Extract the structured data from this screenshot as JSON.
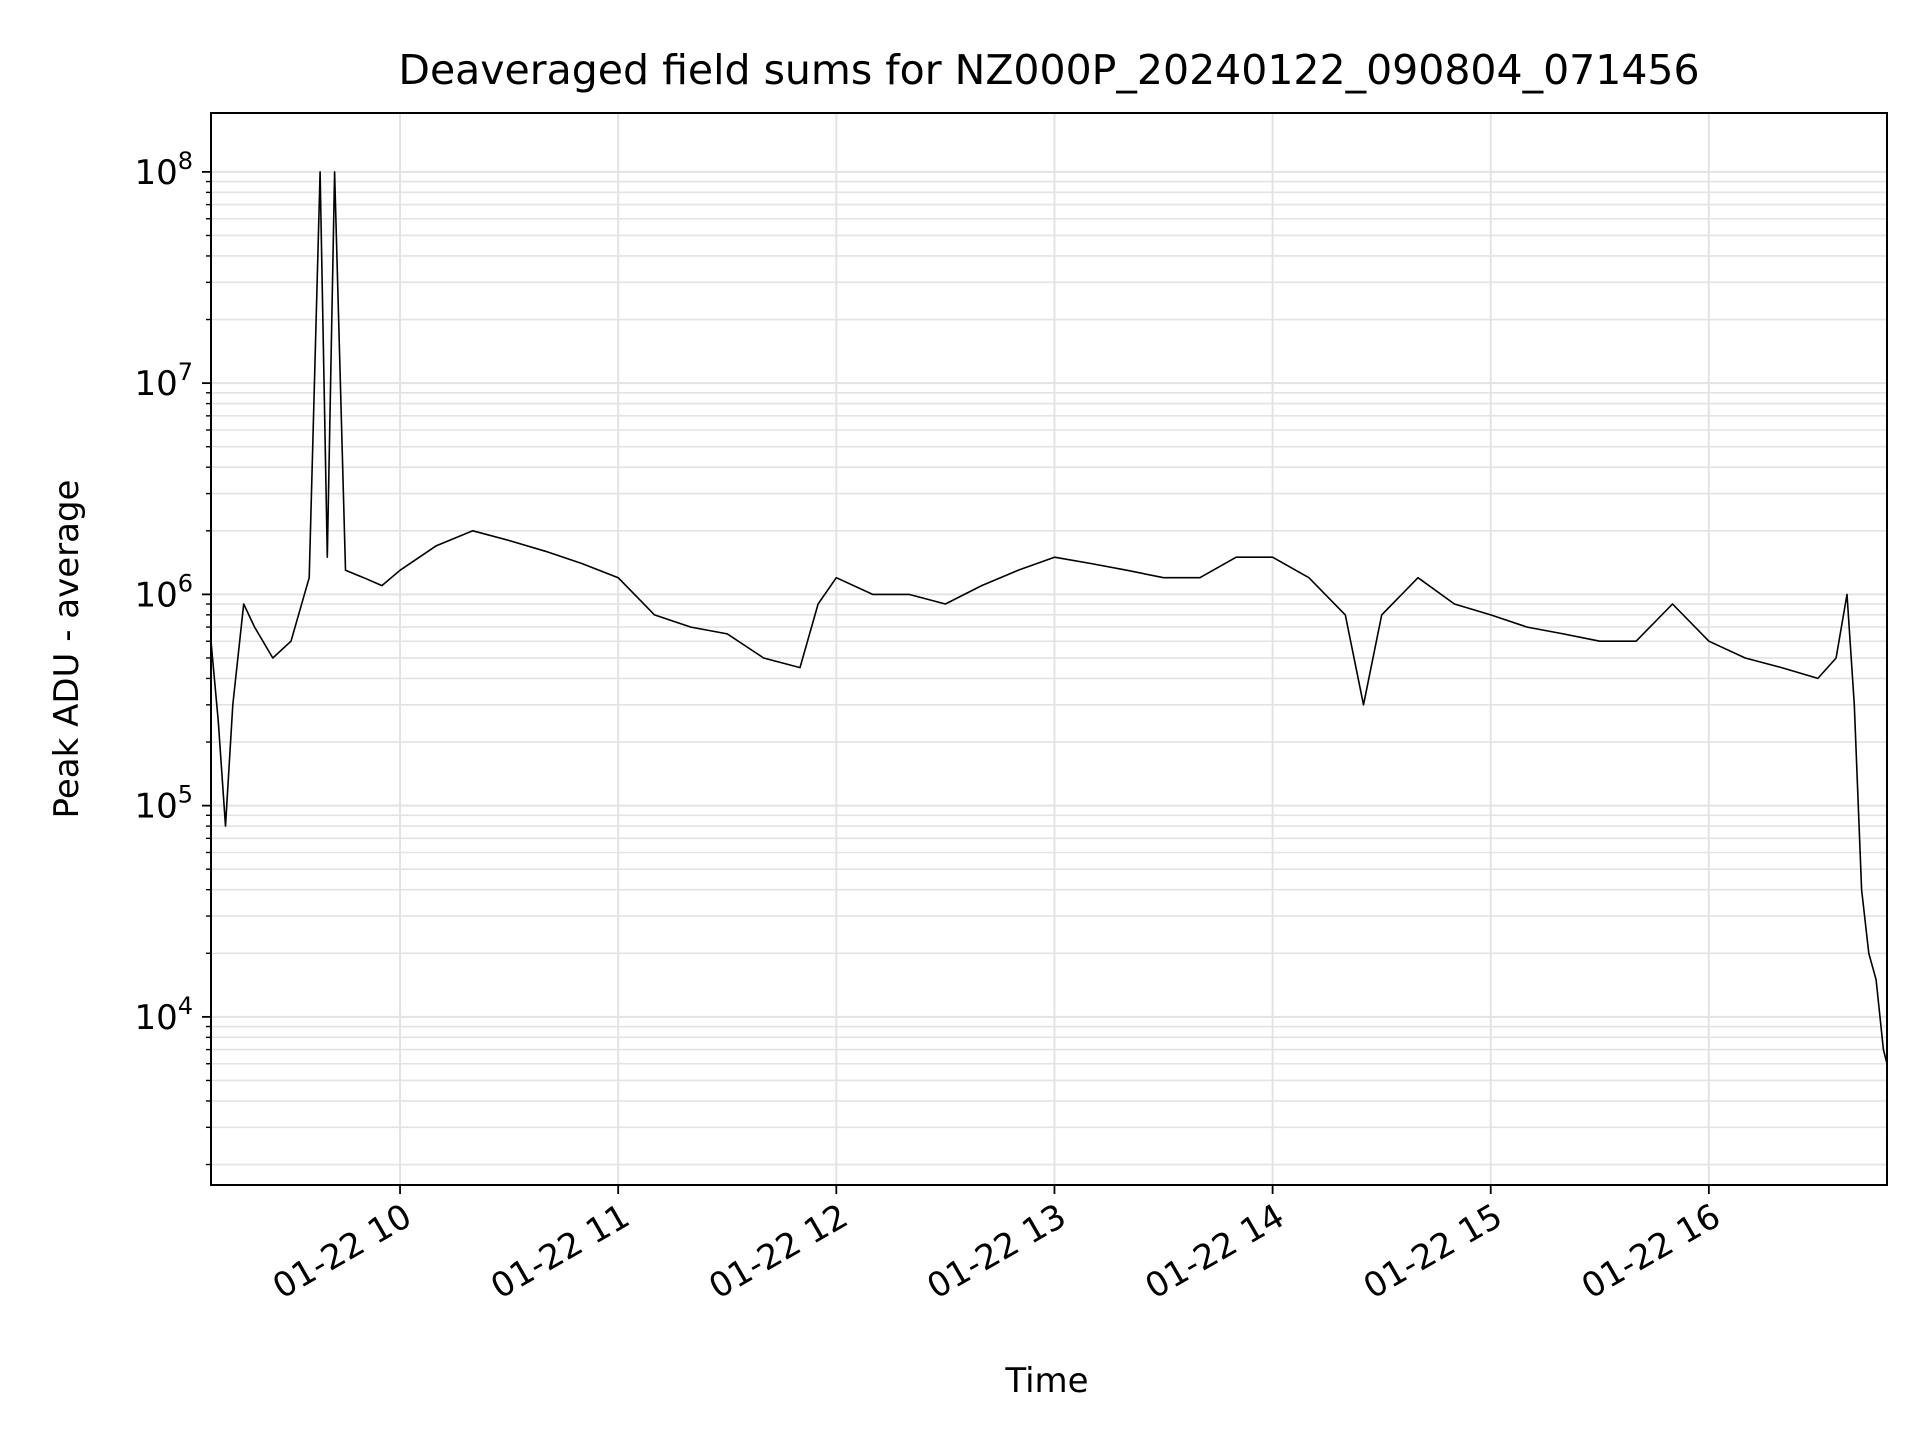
{
  "chart_data": {
    "type": "line",
    "title": "Deaveraged field sums for NZ000P_20240122_090804_071456",
    "xlabel": "Time",
    "ylabel": "Peak ADU - average",
    "y_scale": "log",
    "ylim": [
      1600,
      190000000
    ],
    "xlim": [
      "2024-01-22 09:08",
      "2024-01-22 16:49"
    ],
    "grid": true,
    "colors": {
      "line": "#000000",
      "grid": "#e3e3e3",
      "axes": "#000000"
    },
    "x_ticks": [
      "01-22 10",
      "01-22 11",
      "01-22 12",
      "01-22 13",
      "01-22 14",
      "01-22 15",
      "01-22 16"
    ],
    "y_ticks": [
      {
        "base": "10",
        "exp": "4",
        "value": 10000
      },
      {
        "base": "10",
        "exp": "5",
        "value": 100000
      },
      {
        "base": "10",
        "exp": "6",
        "value": 1000000
      },
      {
        "base": "10",
        "exp": "7",
        "value": 10000000
      },
      {
        "base": "10",
        "exp": "8",
        "value": 100000000
      }
    ],
    "series": [
      {
        "x": [
          "2024-01-22 09:08",
          "2024-01-22 09:10",
          "2024-01-22 09:12",
          "2024-01-22 09:14",
          "2024-01-22 09:17",
          "2024-01-22 09:20",
          "2024-01-22 09:25",
          "2024-01-22 09:30",
          "2024-01-22 09:35",
          "2024-01-22 09:38",
          "2024-01-22 09:40",
          "2024-01-22 09:42",
          "2024-01-22 09:45",
          "2024-01-22 09:50",
          "2024-01-22 09:55",
          "2024-01-22 10:00",
          "2024-01-22 10:10",
          "2024-01-22 10:20",
          "2024-01-22 10:30",
          "2024-01-22 10:40",
          "2024-01-22 10:50",
          "2024-01-22 11:00",
          "2024-01-22 11:10",
          "2024-01-22 11:20",
          "2024-01-22 11:30",
          "2024-01-22 11:40",
          "2024-01-22 11:50",
          "2024-01-22 11:55",
          "2024-01-22 12:00",
          "2024-01-22 12:10",
          "2024-01-22 12:20",
          "2024-01-22 12:30",
          "2024-01-22 12:40",
          "2024-01-22 12:50",
          "2024-01-22 13:00",
          "2024-01-22 13:10",
          "2024-01-22 13:20",
          "2024-01-22 13:30",
          "2024-01-22 13:40",
          "2024-01-22 13:50",
          "2024-01-22 14:00",
          "2024-01-22 14:10",
          "2024-01-22 14:20",
          "2024-01-22 14:25",
          "2024-01-22 14:30",
          "2024-01-22 14:40",
          "2024-01-22 14:50",
          "2024-01-22 15:00",
          "2024-01-22 15:10",
          "2024-01-22 15:20",
          "2024-01-22 15:30",
          "2024-01-22 15:40",
          "2024-01-22 15:50",
          "2024-01-22 16:00",
          "2024-01-22 16:10",
          "2024-01-22 16:20",
          "2024-01-22 16:30",
          "2024-01-22 16:35",
          "2024-01-22 16:38",
          "2024-01-22 16:40",
          "2024-01-22 16:42",
          "2024-01-22 16:44",
          "2024-01-22 16:46",
          "2024-01-22 16:48",
          "2024-01-22 16:49"
        ],
        "y": [
          600000,
          250000,
          80000,
          300000,
          900000,
          700000,
          500000,
          600000,
          1200000,
          100000000,
          1500000,
          100000000,
          1300000,
          1200000,
          1100000,
          1300000,
          1700000,
          2000000,
          1800000,
          1600000,
          1400000,
          1200000,
          800000,
          700000,
          650000,
          500000,
          450000,
          900000,
          1200000,
          1000000,
          1000000,
          900000,
          1100000,
          1300000,
          1500000,
          1400000,
          1300000,
          1200000,
          1200000,
          1500000,
          1500000,
          1200000,
          800000,
          300000,
          800000,
          1200000,
          900000,
          800000,
          700000,
          650000,
          600000,
          600000,
          900000,
          600000,
          500000,
          450000,
          400000,
          500000,
          1000000,
          300000,
          40000,
          20000,
          15000,
          7000,
          6000
        ]
      }
    ]
  }
}
